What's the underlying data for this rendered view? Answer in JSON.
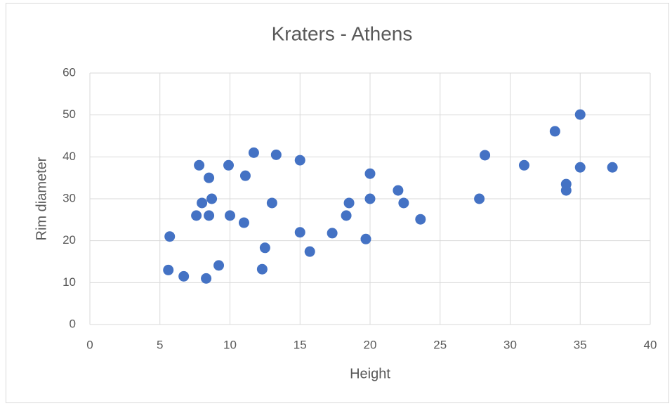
{
  "chart_data": {
    "type": "scatter",
    "title": "Kraters - Athens",
    "x_label": "Height",
    "y_label": "Rim diameter",
    "series": [
      {
        "color": "#4472c4",
        "x": [
          5.6,
          5.7,
          6.7,
          7.6,
          7.8,
          8.0,
          8.3,
          8.5,
          8.5,
          8.7,
          9.2,
          9.9,
          10.0,
          11.0,
          11.1,
          11.7,
          12.3,
          12.5,
          13.0,
          13.3,
          15.0,
          15.0,
          15.7,
          17.3,
          18.3,
          18.5,
          19.7,
          20.0,
          20.0,
          22.0,
          22.4,
          23.6,
          27.8,
          28.2,
          31.0,
          33.2,
          34.0,
          34.0,
          35.0,
          35.0,
          37.3
        ],
        "values": [
          13,
          21,
          11.5,
          26,
          38,
          29,
          11,
          35,
          26,
          30,
          14.1,
          38,
          26,
          24.3,
          35.5,
          41,
          13.2,
          18.3,
          29,
          40.5,
          39.2,
          22,
          17.4,
          21.8,
          26,
          29,
          20.4,
          36,
          30,
          32,
          29,
          25.1,
          30,
          40.4,
          38,
          46.1,
          33.5,
          32,
          50.1,
          37.5,
          37.5
        ]
      }
    ],
    "xlim": [
      0,
      40
    ],
    "xticks": [
      0,
      5,
      10,
      15,
      20,
      25,
      30,
      35,
      40
    ],
    "ylim": [
      0,
      60
    ],
    "yticks": [
      0,
      10,
      20,
      30,
      40,
      50,
      60
    ],
    "grid": true
  }
}
